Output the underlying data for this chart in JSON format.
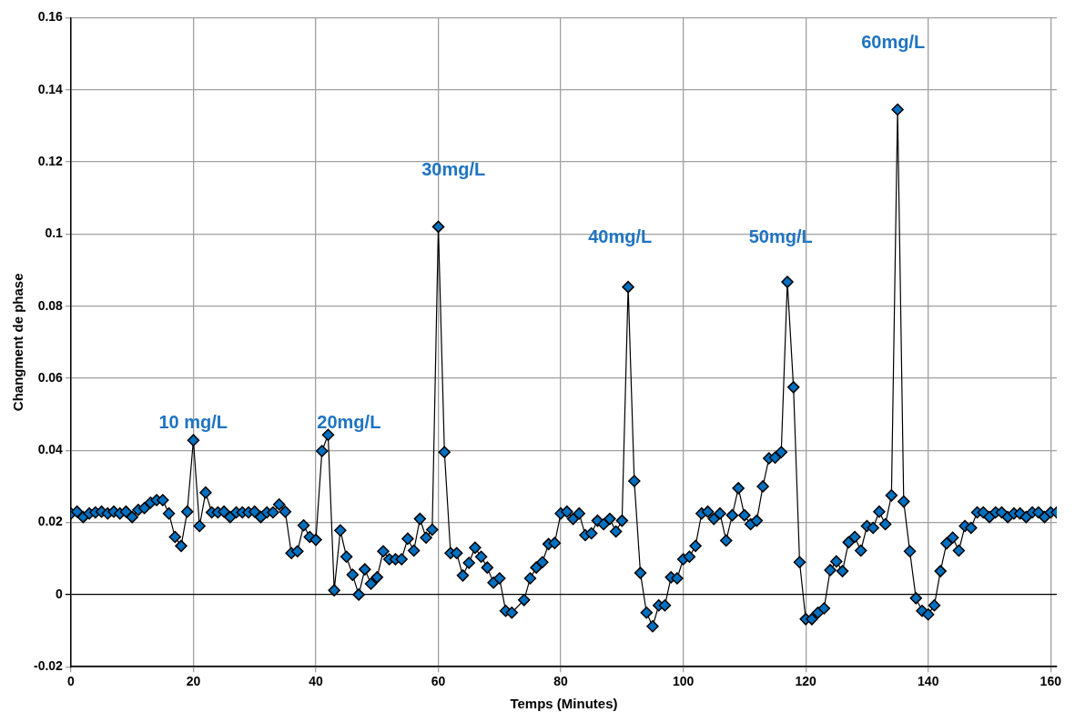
{
  "chart_data": {
    "type": "line",
    "xlabel": "Temps (Minutes)",
    "ylabel": "Changment de phase",
    "x": [
      0,
      1,
      2,
      3,
      4,
      5,
      6,
      7,
      8,
      9,
      10,
      11,
      12,
      13,
      14,
      15,
      16,
      17,
      18,
      19,
      20,
      21,
      22,
      23,
      24,
      25,
      26,
      27,
      28,
      29,
      30,
      31,
      32,
      33,
      34,
      35,
      36,
      37,
      38,
      39,
      40,
      41,
      42,
      43,
      44,
      45,
      46,
      47,
      48,
      49,
      50,
      51,
      52,
      53,
      54,
      55,
      56,
      57,
      58,
      59,
      60,
      61,
      62,
      63,
      64,
      65,
      66,
      67,
      68,
      69,
      70,
      71,
      72,
      74,
      75,
      76,
      77,
      78,
      79,
      80,
      81,
      82,
      83,
      84,
      85,
      86,
      87,
      88,
      89,
      90,
      91,
      92,
      93,
      94,
      95,
      96,
      97,
      98,
      99,
      100,
      101,
      102,
      103,
      104,
      105,
      106,
      107,
      108,
      109,
      110,
      111,
      112,
      113,
      114,
      115,
      116,
      117,
      118,
      119,
      120,
      121,
      122,
      123,
      124,
      125,
      126,
      127,
      128,
      129,
      130,
      131,
      132,
      133,
      134,
      135,
      136,
      137,
      138,
      139,
      140,
      141,
      142,
      143,
      144,
      145,
      146,
      147,
      148,
      149,
      150,
      151,
      152,
      153,
      154,
      155,
      156,
      157,
      158,
      159,
      160,
      161
    ],
    "series": [
      {
        "color": "#0070c0",
        "values": [
          0.0225,
          0.023,
          0.0215,
          0.0225,
          0.0228,
          0.023,
          0.0225,
          0.023,
          0.0225,
          0.023,
          0.0215,
          0.0235,
          0.024,
          0.0255,
          0.0262,
          0.0262,
          0.0225,
          0.016,
          0.0135,
          0.023,
          0.0428,
          0.019,
          0.0283,
          0.0228,
          0.0228,
          0.023,
          0.0215,
          0.0228,
          0.0228,
          0.0228,
          0.023,
          0.0215,
          0.0228,
          0.0228,
          0.025,
          0.023,
          0.0115,
          0.012,
          0.0192,
          0.016,
          0.0152,
          0.0398,
          0.0443,
          0.0012,
          0.0178,
          0.0105,
          0.0055,
          0.0,
          0.007,
          0.003,
          0.0048,
          0.012,
          0.0098,
          0.0098,
          0.0098,
          0.0155,
          0.0122,
          0.021,
          0.0158,
          0.018,
          0.102,
          0.0395,
          0.0115,
          0.0115,
          0.0053,
          0.0088,
          0.013,
          0.0105,
          0.0075,
          0.0033,
          0.0045,
          -0.0045,
          -0.005,
          -0.0015,
          0.0045,
          0.0075,
          0.009,
          0.014,
          0.0143,
          0.0225,
          0.023,
          0.021,
          0.0225,
          0.0165,
          0.017,
          0.0205,
          0.0195,
          0.021,
          0.0175,
          0.0205,
          0.0853,
          0.0315,
          0.006,
          -0.005,
          -0.0088,
          -0.003,
          -0.003,
          0.0048,
          0.0045,
          0.0098,
          0.0105,
          0.0135,
          0.0225,
          0.023,
          0.021,
          0.0225,
          0.015,
          0.022,
          0.0295,
          0.022,
          0.0195,
          0.0205,
          0.03,
          0.0378,
          0.038,
          0.0395,
          0.0867,
          0.0575,
          0.009,
          -0.0068,
          -0.0068,
          -0.005,
          -0.0038,
          0.0068,
          0.0092,
          0.0065,
          0.0145,
          0.016,
          0.0122,
          0.019,
          0.0185,
          0.023,
          0.0195,
          0.0275,
          0.1345,
          0.0258,
          0.012,
          -0.001,
          -0.0045,
          -0.0055,
          -0.003,
          0.0065,
          0.0142,
          0.0158,
          0.0122,
          0.019,
          0.0185,
          0.0228,
          0.0228,
          0.0215,
          0.0228,
          0.0228,
          0.0215,
          0.0225,
          0.0225,
          0.0215,
          0.0228,
          0.0228,
          0.0215,
          0.0228,
          0.0228
        ]
      }
    ],
    "xlim": [
      0,
      161
    ],
    "xticks": [
      0,
      20,
      40,
      60,
      80,
      100,
      120,
      140,
      160
    ],
    "ylim": [
      -0.02,
      0.16
    ],
    "yticks": [
      -0.02,
      0,
      0.02,
      0.04,
      0.06,
      0.08,
      0.1,
      0.12,
      0.14,
      0.16
    ],
    "grid": true,
    "legend": false,
    "marker": "diamond",
    "line_style": "solid",
    "annotations": [
      "10 mg/L",
      "20mg/L",
      "30mg/L",
      "40mg/L",
      "50mg/L",
      "60mg/L"
    ]
  }
}
